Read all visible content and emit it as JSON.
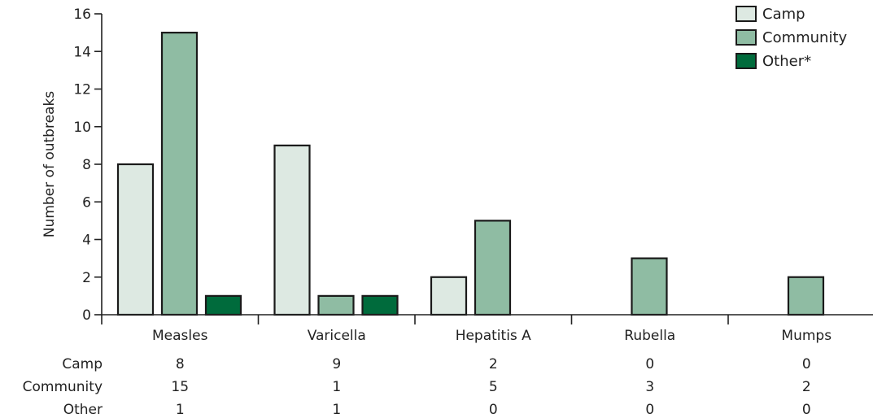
{
  "chart_data": {
    "type": "bar",
    "title": "",
    "xlabel": "",
    "ylabel": "Number of outbreaks",
    "ylim": [
      0,
      16
    ],
    "yticks": [
      0,
      2,
      4,
      6,
      8,
      10,
      12,
      14,
      16
    ],
    "grid": false,
    "legend_position": "top-right",
    "categories": [
      "Measles",
      "Varicella",
      "Hepatitis A",
      "Rubella",
      "Mumps"
    ],
    "series": [
      {
        "name": "Camp",
        "table_label": "Camp",
        "color": "#dde9e2",
        "values": [
          8,
          9,
          2,
          0,
          0
        ]
      },
      {
        "name": "Community",
        "table_label": "Community",
        "color": "#8fbca3",
        "values": [
          15,
          1,
          5,
          3,
          2
        ]
      },
      {
        "name": "Other*",
        "table_label": "Other",
        "color": "#006b3c",
        "values": [
          1,
          1,
          0,
          0,
          0
        ]
      }
    ]
  }
}
